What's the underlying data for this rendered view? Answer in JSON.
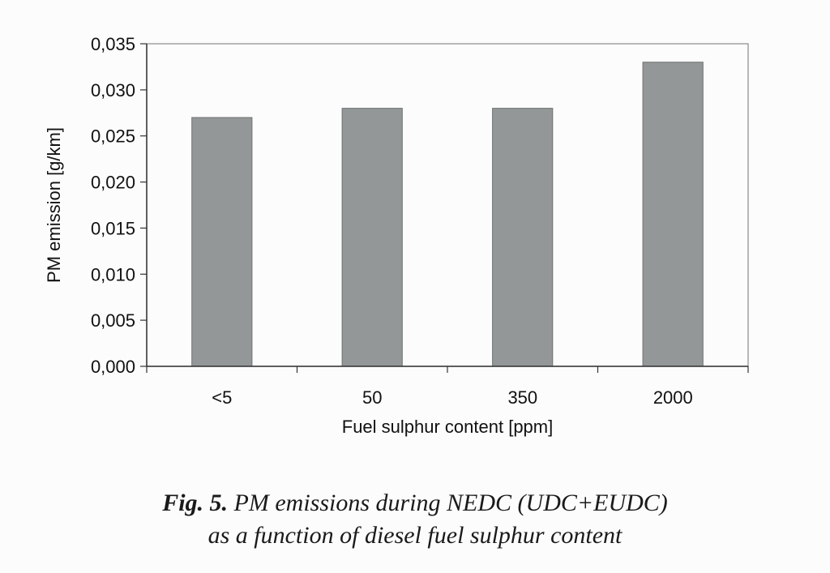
{
  "chart_data": {
    "type": "bar",
    "categories": [
      "<5",
      "50",
      "350",
      "2000"
    ],
    "values": [
      0.027,
      0.028,
      0.028,
      0.033
    ],
    "xlabel": "Fuel sulphur content [ppm]",
    "ylabel": "PM emission [g/km]",
    "ylim": [
      0,
      0.035
    ],
    "yticks": [
      "0,000",
      "0,005",
      "0,010",
      "0,015",
      "0,020",
      "0,025",
      "0,030",
      "0,035"
    ],
    "grid": false,
    "legend": "none",
    "bar_color": "#939797",
    "bar_edge_color": "#6f7272"
  },
  "caption": {
    "label": "Fig. 5.",
    "line1": "PM emissions during NEDC (UDC+EUDC)",
    "line2": "as a function of diesel fuel sulphur content"
  }
}
